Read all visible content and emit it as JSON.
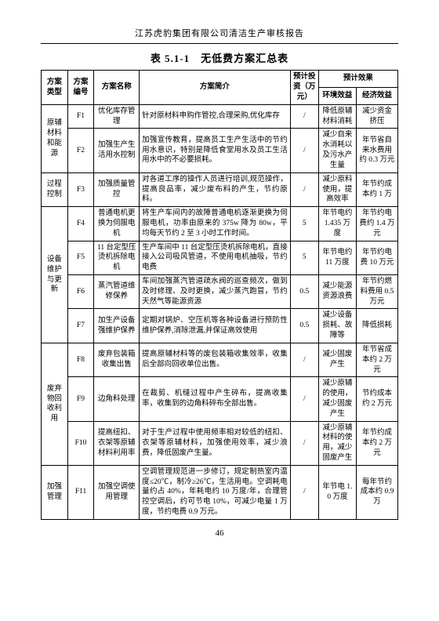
{
  "report_header": "江苏虎豹集团有限公司清洁生产审核报告",
  "table_title": "表 5.1-1　无低费方案汇总表",
  "page_number": "46",
  "h": {
    "c1": "方案类型",
    "c2": "方案编号",
    "c3": "方案名称",
    "c4": "方案简介",
    "c5": "预计投资（万元）",
    "c6top": "预计效果",
    "c6": "环境效益",
    "c7": "经济效益"
  },
  "g": {
    "g1": "原辅材料和能源",
    "g2": "过程控制",
    "g3": "设备维护与更新",
    "g4": "废弃物回收利用",
    "g5": "加强管理"
  },
  "r": {
    "F1": {
      "no": "F1",
      "name": "优化库存管理",
      "desc": "针对原材料申购作管控,合理采购,优化库存",
      "inv": "/",
      "env": "降低原辅材料消耗",
      "eco": "减少资金挤压"
    },
    "F2": {
      "no": "F2",
      "name": "加强生产生活用水控制",
      "desc": "加强宣传教育，提高员工生产生活中的节约用水意识，特别是降低食堂用水及员工生活用水中的不必要损耗。",
      "inv": "/",
      "env": "减少自来水消耗以及污水产生量",
      "eco": "年节省自来水费用约 0.3 万元"
    },
    "F3": {
      "no": "F3",
      "name": "加强质量管控",
      "desc": "对各道工序的操作人员进行培训,规范操作，提高良品率，减少废布料的产生，节约原料。",
      "inv": "/",
      "env": "减少原料使用，提高效率",
      "eco": "年节约成本约 1 万"
    },
    "F4": {
      "no": "F4",
      "name": "普通电机更换为伺服电机",
      "desc": "将生产车间内的故障普通电机逐渐更换为伺服电机，功率由原来的 375w 降为 80w，平均每天节约 2 至 3 小时工作时间。",
      "inv": "5",
      "env": "年节电约 1.435 万度",
      "eco": "年节约电费约 1.4 万元"
    },
    "F5": {
      "no": "F5",
      "name": "11 台定型压烫机拆除电机",
      "desc": "生产车间中 11 台定型压烫机拆除电机，直接接入公司吸风管道，不使用电机抽吸，节约电费",
      "inv": "5",
      "env": "年节电约 11 万度",
      "eco": "年节约电费 10 万元"
    },
    "F6": {
      "no": "F6",
      "name": "蒸汽管道维修保养",
      "desc": "车间加强蒸汽管道疏水阀的巡查频次，做到及时修理、及时更换，减少蒸汽跑冒，节约天然气等能源资源",
      "inv": "0.5",
      "env": "减少能源资源浪费",
      "eco": "年节约燃料费用 0.5 万元"
    },
    "F7": {
      "no": "F7",
      "name": "加生产设备强维护保养",
      "desc": "定期对锅炉、空压机等各种设备进行预防性维护保养,消除泄漏,并保证高效使用",
      "inv": "0.5",
      "env": "减少设备损耗、故障等",
      "eco": "降低损耗"
    },
    "F8": {
      "no": "F8",
      "name": "废弃包装箱收集出售",
      "desc": "提高原辅材料等的废包装箱收集效率，收集后全部向回收单位出售。",
      "inv": "/",
      "env": "减少固废产生",
      "eco": "年节省成本约 2 万元"
    },
    "F9": {
      "no": "F9",
      "name": "边角料处理",
      "desc": "在裁剪、机缝过程中产生碎布，提高收集率，收集到的边角料碎布全部出售。",
      "inv": "/",
      "env": "减少原辅的使用，减少固废产生",
      "eco": "节约成本约 2 万元"
    },
    "F10": {
      "no": "F10",
      "name": "提高纽扣、衣架等原辅材料利用率",
      "desc": "对于生产过程中使用频率相对较低的纽扣、衣架等原辅材料，加强使用效率，减少浪费，降低固废产生量。",
      "inv": "/",
      "env": "减少原辅材料的使用，减少固废产生",
      "eco": "年节约成本约 2 万元"
    },
    "F11": {
      "no": "F11",
      "name": "加强空调使用管理",
      "desc": "空调管理规范进一步修订，规定制热室内温度≤20℃，制冷≥26℃，生活用电。空调耗电量约占 40%，年耗电约 10 万度/年，合理管控空调后，约可节电 10%，可减少电量 1 万度，节约电费 0.9 万元。",
      "inv": "/",
      "env": "年节电 1.0 万度",
      "eco": "每年节约成本约 0.9 万"
    }
  }
}
